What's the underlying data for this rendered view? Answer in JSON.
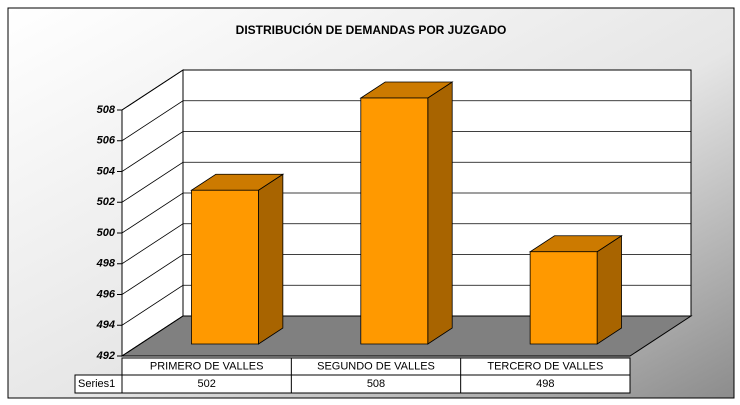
{
  "chart_data": {
    "type": "bar3d",
    "title": "DISTRIBUCIÓN DE DEMANDAS POR JUZGADO",
    "categories": [
      "PRIMERO DE VALLES",
      "SEGUNDO DE VALLES",
      "TERCERO DE VALLES"
    ],
    "series": [
      {
        "name": "Series1",
        "color": "#ff9900",
        "values": [
          502,
          508,
          498
        ]
      }
    ],
    "ylim": [
      492,
      508
    ],
    "yticks": [
      492,
      494,
      496,
      498,
      500,
      502,
      504,
      506,
      508
    ],
    "grid": true
  }
}
